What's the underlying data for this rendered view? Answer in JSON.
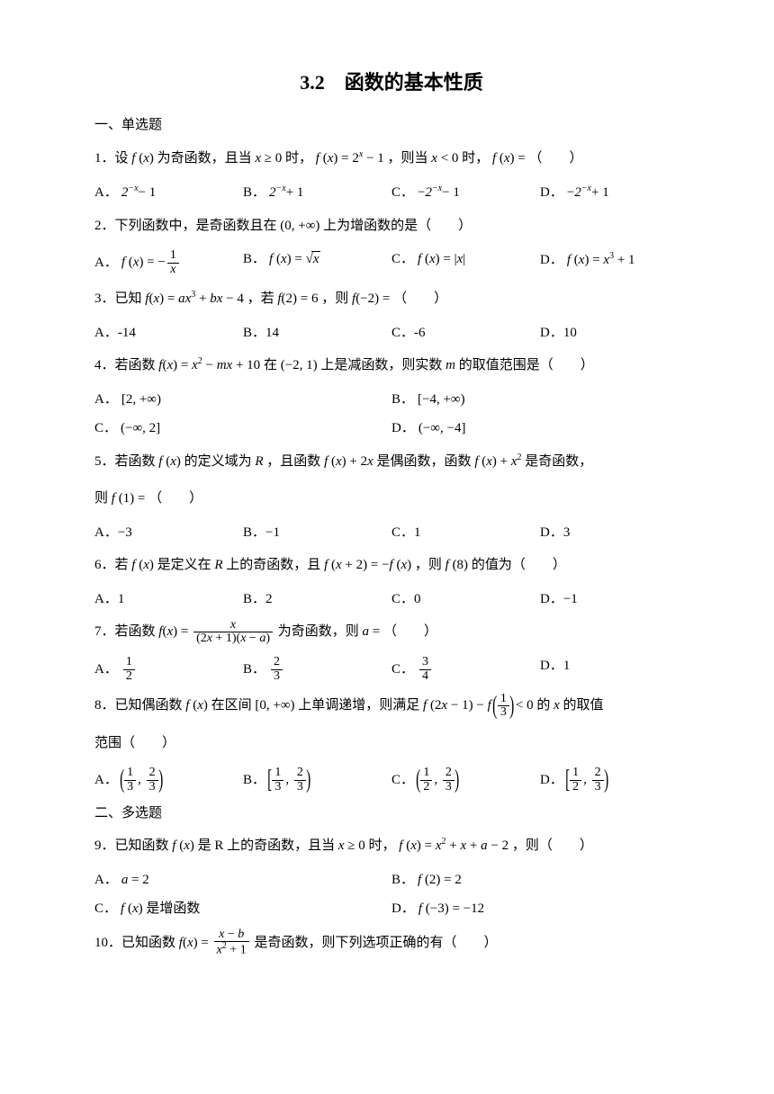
{
  "title": "3.2　函数的基本性质",
  "section1": "一、单选题",
  "section2": "二、多选题",
  "q1": {
    "stem_a": "1．设",
    "stem_b": "为奇函数，且当",
    "stem_c": "时，",
    "stem_d": "，则当",
    "stem_e": "时，",
    "stem_f": "（　　）",
    "A": "A．",
    "B": "B．",
    "C": "C．",
    "D": "D．"
  },
  "q2": {
    "stem_a": "2．下列函数中，是奇函数且在",
    "stem_b": "上为增函数的是（　　）",
    "A": "A．",
    "B": "B．",
    "C": "C．",
    "D": "D．"
  },
  "q3": {
    "stem_a": "3．已知",
    "stem_b": "，若",
    "stem_c": "，则",
    "stem_d": "（　　）",
    "A": "A．-14",
    "B": "B．14",
    "C": "C．-6",
    "D": "D．10"
  },
  "q4": {
    "stem_a": "4．若函数",
    "stem_b": "在",
    "stem_c": "上是减函数，则实数",
    "stem_d": "的取值范围是（　　）",
    "A": "A．",
    "B": "B．",
    "C": "C．",
    "D": "D．"
  },
  "q5": {
    "stem_a": "5．若函数",
    "stem_b": "的定义域为",
    "stem_c": "，且函数",
    "stem_d": "是偶函数，函数",
    "stem_e": "是奇函数，",
    "stem_f": "则",
    "stem_g": "（　　）",
    "A": "A．−3",
    "B": "B．−1",
    "C": "C．1",
    "D": "D．3"
  },
  "q6": {
    "stem_a": "6．若",
    "stem_b": "是定义在",
    "stem_c": "上的奇函数，且",
    "stem_d": "，则",
    "stem_e": "的值为（　　）",
    "A": "A．1",
    "B": "B．2",
    "C": "C．0",
    "D": "D．−1"
  },
  "q7": {
    "stem_a": "7．若函数",
    "stem_b": "为奇函数，则",
    "stem_c": "（　　）",
    "A": "A．",
    "B": "B．",
    "C": "C．",
    "D": "D．1"
  },
  "q8": {
    "stem_a": "8．已知偶函数",
    "stem_b": "在区间",
    "stem_c": "上单调递增，则满足",
    "stem_d": "的",
    "stem_e": "的取值",
    "stem_f": "范围（　　）",
    "A": "A．",
    "B": "B．",
    "C": "C．",
    "D": "D．"
  },
  "q9": {
    "stem_a": "9．已知函数",
    "stem_b": "是 R 上的奇函数，且当",
    "stem_c": "时，",
    "stem_d": "，则（　　）",
    "A": "A．",
    "B": "B．",
    "C": "C．",
    "C_text": "是增函数",
    "D": "D．"
  },
  "q10": {
    "stem_a": "10．已知函数",
    "stem_b": "是奇函数，则下列选项正确的有（　　）"
  }
}
